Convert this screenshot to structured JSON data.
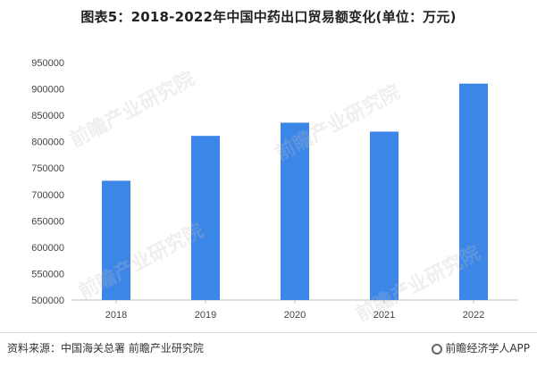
{
  "chart_data": {
    "type": "bar",
    "title": "图表5：2018-2022年中国中药出口贸易额变化(单位：万元)",
    "categories": [
      "2018",
      "2019",
      "2020",
      "2021",
      "2022"
    ],
    "values": [
      726000,
      811000,
      836000,
      819000,
      910000
    ],
    "ylim": [
      500000,
      950000
    ],
    "yticks": [
      500000,
      550000,
      600000,
      650000,
      700000,
      750000,
      800000,
      850000,
      900000,
      950000
    ],
    "xlabel": "",
    "ylabel": "",
    "grid": false,
    "bar_color": "#3c86e8",
    "axis_color": "#bfbfbf",
    "tick_label_color": "#444444"
  },
  "footer": {
    "source": "资料来源：中国海关总署 前瞻产业研究院",
    "brand": "前瞻经济学人APP"
  },
  "watermark": {
    "text": "前瞻产业研究院"
  }
}
